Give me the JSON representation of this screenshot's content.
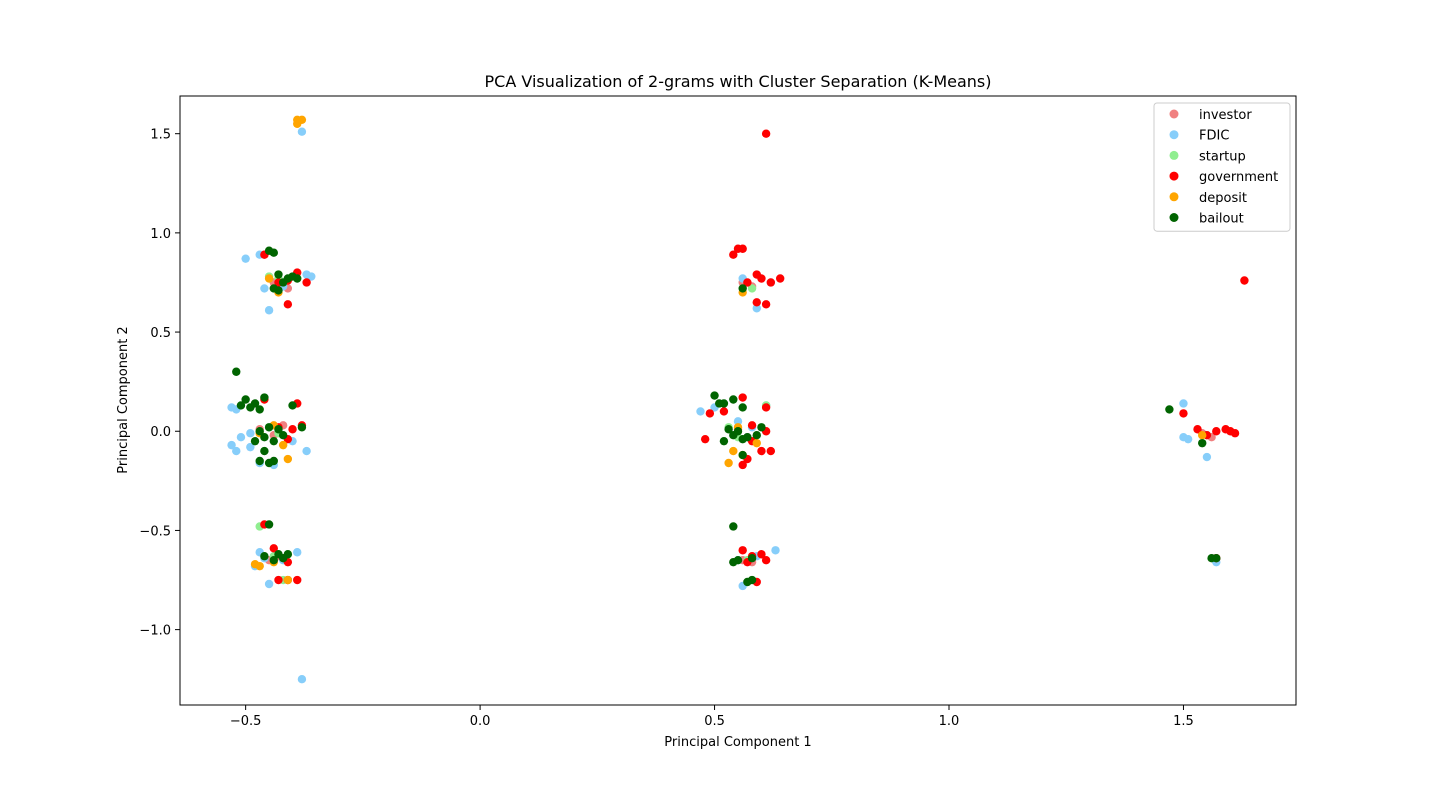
{
  "chart_data": {
    "type": "scatter",
    "title": "PCA Visualization of 2-grams with Cluster Separation (K-Means)",
    "xlabel": "Principal Component 1",
    "ylabel": "Principal Component 2",
    "xlim": [
      -0.64,
      1.74
    ],
    "ylim": [
      -1.38,
      1.69
    ],
    "xticks": [
      -0.5,
      0.0,
      0.5,
      1.0,
      1.5
    ],
    "xtick_labels": [
      "−0.5",
      "0.0",
      "0.5",
      "1.0",
      "1.5"
    ],
    "yticks": [
      -1.0,
      -0.5,
      0.0,
      0.5,
      1.0,
      1.5
    ],
    "ytick_labels": [
      "−1.0",
      "−0.5",
      "0.0",
      "0.5",
      "1.0",
      "1.5"
    ],
    "grid": false,
    "legend_position": "top-right",
    "series": [
      {
        "name": "investor",
        "color": "#f08080",
        "points": [
          [
            -0.46,
            0.89
          ],
          [
            -0.44,
            0.75
          ],
          [
            -0.41,
            0.72
          ],
          [
            -0.47,
            0.01
          ],
          [
            -0.44,
            -0.02
          ],
          [
            -0.42,
            0.03
          ],
          [
            -0.45,
            -0.65
          ],
          [
            -0.43,
            -0.63
          ],
          [
            0.56,
            0.75
          ],
          [
            0.58,
            0.73
          ],
          [
            0.55,
            0.01
          ],
          [
            0.57,
            -0.03
          ],
          [
            0.56,
            -0.65
          ],
          [
            0.58,
            -0.66
          ],
          [
            1.54,
            -0.01
          ],
          [
            1.56,
            -0.03
          ]
        ]
      },
      {
        "name": "FDIC",
        "color": "#87cefa",
        "points": [
          [
            -0.38,
            1.51
          ],
          [
            -0.5,
            0.87
          ],
          [
            -0.47,
            0.89
          ],
          [
            -0.46,
            0.72
          ],
          [
            -0.45,
            0.61
          ],
          [
            -0.42,
            0.73
          ],
          [
            -0.36,
            0.78
          ],
          [
            -0.37,
            0.79
          ],
          [
            -0.53,
            0.12
          ],
          [
            -0.52,
            0.11
          ],
          [
            -0.53,
            -0.07
          ],
          [
            -0.52,
            -0.1
          ],
          [
            -0.51,
            -0.03
          ],
          [
            -0.49,
            -0.01
          ],
          [
            -0.49,
            -0.08
          ],
          [
            -0.47,
            -0.16
          ],
          [
            -0.44,
            -0.17
          ],
          [
            -0.43,
            0.0
          ],
          [
            -0.4,
            -0.05
          ],
          [
            -0.37,
            -0.1
          ],
          [
            -0.47,
            -0.61
          ],
          [
            -0.46,
            -0.64
          ],
          [
            -0.45,
            -0.77
          ],
          [
            -0.42,
            -0.65
          ],
          [
            -0.39,
            -0.61
          ],
          [
            -0.48,
            -0.68
          ],
          [
            -0.38,
            -1.25
          ],
          [
            0.47,
            0.1
          ],
          [
            0.5,
            0.12
          ],
          [
            0.55,
            0.05
          ],
          [
            0.57,
            -0.03
          ],
          [
            0.56,
            0.77
          ],
          [
            0.59,
            0.62
          ],
          [
            0.62,
            0.75
          ],
          [
            0.61,
            0.13
          ],
          [
            0.58,
            0.02
          ],
          [
            0.55,
            -0.65
          ],
          [
            0.56,
            -0.78
          ],
          [
            0.59,
            -0.63
          ],
          [
            0.63,
            -0.6
          ],
          [
            1.5,
            -0.03
          ],
          [
            1.5,
            0.14
          ],
          [
            1.51,
            -0.04
          ],
          [
            1.55,
            -0.13
          ],
          [
            1.57,
            -0.66
          ]
        ]
      },
      {
        "name": "startup",
        "color": "#90ee90",
        "points": [
          [
            -0.47,
            -0.48
          ],
          [
            -0.45,
            0.78
          ],
          [
            -0.43,
            0.77
          ],
          [
            -0.44,
            -0.63
          ],
          [
            -0.42,
            -0.75
          ],
          [
            -0.45,
            0.02
          ],
          [
            -0.43,
            -0.01
          ],
          [
            0.53,
            0.02
          ],
          [
            0.55,
            -0.03
          ],
          [
            0.61,
            0.13
          ],
          [
            0.58,
            0.72
          ],
          [
            0.57,
            -0.65
          ],
          [
            1.55,
            -0.02
          ]
        ]
      },
      {
        "name": "government",
        "color": "#ff0000",
        "points": [
          [
            -0.46,
            0.89
          ],
          [
            -0.43,
            0.75
          ],
          [
            -0.41,
            0.76
          ],
          [
            -0.39,
            0.8
          ],
          [
            -0.37,
            0.75
          ],
          [
            -0.41,
            0.64
          ],
          [
            -0.46,
            0.16
          ],
          [
            -0.39,
            0.14
          ],
          [
            -0.43,
            0.02
          ],
          [
            -0.4,
            0.01
          ],
          [
            -0.38,
            0.03
          ],
          [
            -0.41,
            -0.04
          ],
          [
            -0.46,
            -0.47
          ],
          [
            -0.44,
            -0.59
          ],
          [
            -0.41,
            -0.66
          ],
          [
            -0.43,
            -0.75
          ],
          [
            -0.41,
            -0.75
          ],
          [
            -0.39,
            -0.75
          ],
          [
            0.54,
            0.89
          ],
          [
            0.55,
            0.92
          ],
          [
            0.56,
            0.92
          ],
          [
            0.57,
            0.75
          ],
          [
            0.59,
            0.79
          ],
          [
            0.6,
            0.77
          ],
          [
            0.62,
            0.75
          ],
          [
            0.64,
            0.77
          ],
          [
            0.59,
            0.65
          ],
          [
            0.61,
            0.64
          ],
          [
            0.61,
            1.5
          ],
          [
            0.49,
            0.09
          ],
          [
            0.52,
            0.1
          ],
          [
            0.56,
            0.17
          ],
          [
            0.61,
            0.12
          ],
          [
            0.58,
            0.03
          ],
          [
            0.61,
            0.0
          ],
          [
            0.58,
            -0.05
          ],
          [
            0.6,
            -0.1
          ],
          [
            0.62,
            -0.1
          ],
          [
            0.56,
            -0.17
          ],
          [
            0.57,
            -0.14
          ],
          [
            0.48,
            -0.04
          ],
          [
            0.56,
            -0.6
          ],
          [
            0.58,
            -0.63
          ],
          [
            0.6,
            -0.62
          ],
          [
            0.61,
            -0.65
          ],
          [
            0.59,
            -0.76
          ],
          [
            0.57,
            -0.66
          ],
          [
            1.5,
            0.09
          ],
          [
            1.53,
            0.01
          ],
          [
            1.55,
            -0.02
          ],
          [
            1.57,
            0.0
          ],
          [
            1.59,
            0.01
          ],
          [
            1.6,
            0.0
          ],
          [
            1.61,
            -0.01
          ],
          [
            1.63,
            0.76
          ],
          [
            1.57,
            -0.64
          ]
        ]
      },
      {
        "name": "deposit",
        "color": "#ffa500",
        "points": [
          [
            -0.39,
            1.57
          ],
          [
            -0.39,
            1.55
          ],
          [
            -0.38,
            1.57
          ],
          [
            -0.45,
            0.77
          ],
          [
            -0.43,
            0.7
          ],
          [
            -0.47,
            -0.01
          ],
          [
            -0.44,
            0.03
          ],
          [
            -0.42,
            -0.07
          ],
          [
            -0.41,
            -0.14
          ],
          [
            -0.48,
            -0.67
          ],
          [
            -0.47,
            -0.68
          ],
          [
            -0.41,
            -0.75
          ],
          [
            -0.44,
            -0.66
          ],
          [
            0.56,
            0.7
          ],
          [
            0.55,
            0.02
          ],
          [
            0.54,
            -0.1
          ],
          [
            0.53,
            -0.16
          ],
          [
            0.56,
            -0.12
          ],
          [
            0.59,
            -0.06
          ],
          [
            1.54,
            -0.02
          ]
        ]
      },
      {
        "name": "bailout",
        "color": "#006400",
        "points": [
          [
            -0.52,
            0.3
          ],
          [
            -0.45,
            0.91
          ],
          [
            -0.44,
            0.9
          ],
          [
            -0.43,
            0.79
          ],
          [
            -0.42,
            0.75
          ],
          [
            -0.41,
            0.77
          ],
          [
            -0.4,
            0.78
          ],
          [
            -0.39,
            0.77
          ],
          [
            -0.43,
            0.71
          ],
          [
            -0.44,
            0.72
          ],
          [
            -0.51,
            0.13
          ],
          [
            -0.5,
            0.16
          ],
          [
            -0.48,
            0.14
          ],
          [
            -0.47,
            0.11
          ],
          [
            -0.46,
            0.17
          ],
          [
            -0.49,
            0.12
          ],
          [
            -0.4,
            0.13
          ],
          [
            -0.38,
            0.02
          ],
          [
            -0.47,
            0.0
          ],
          [
            -0.46,
            -0.03
          ],
          [
            -0.45,
            0.02
          ],
          [
            -0.44,
            -0.05
          ],
          [
            -0.43,
            0.01
          ],
          [
            -0.42,
            -0.02
          ],
          [
            -0.48,
            -0.05
          ],
          [
            -0.46,
            -0.1
          ],
          [
            -0.45,
            -0.16
          ],
          [
            -0.44,
            -0.15
          ],
          [
            -0.47,
            -0.15
          ],
          [
            -0.45,
            -0.47
          ],
          [
            -0.46,
            -0.63
          ],
          [
            -0.44,
            -0.65
          ],
          [
            -0.43,
            -0.62
          ],
          [
            -0.42,
            -0.64
          ],
          [
            -0.41,
            -0.62
          ],
          [
            0.5,
            0.18
          ],
          [
            0.51,
            0.14
          ],
          [
            0.52,
            0.14
          ],
          [
            0.54,
            0.16
          ],
          [
            0.56,
            0.12
          ],
          [
            0.53,
            0.01
          ],
          [
            0.54,
            -0.02
          ],
          [
            0.55,
            0.0
          ],
          [
            0.56,
            -0.04
          ],
          [
            0.57,
            -0.03
          ],
          [
            0.52,
            -0.05
          ],
          [
            0.59,
            -0.02
          ],
          [
            0.56,
            -0.12
          ],
          [
            0.54,
            -0.48
          ],
          [
            0.54,
            -0.66
          ],
          [
            0.55,
            -0.65
          ],
          [
            0.58,
            -0.64
          ],
          [
            0.6,
            0.02
          ],
          [
            0.56,
            0.72
          ],
          [
            0.58,
            -0.75
          ],
          [
            0.57,
            -0.76
          ],
          [
            1.47,
            0.11
          ],
          [
            1.54,
            -0.06
          ],
          [
            1.57,
            -0.64
          ],
          [
            1.56,
            -0.64
          ]
        ]
      }
    ]
  }
}
